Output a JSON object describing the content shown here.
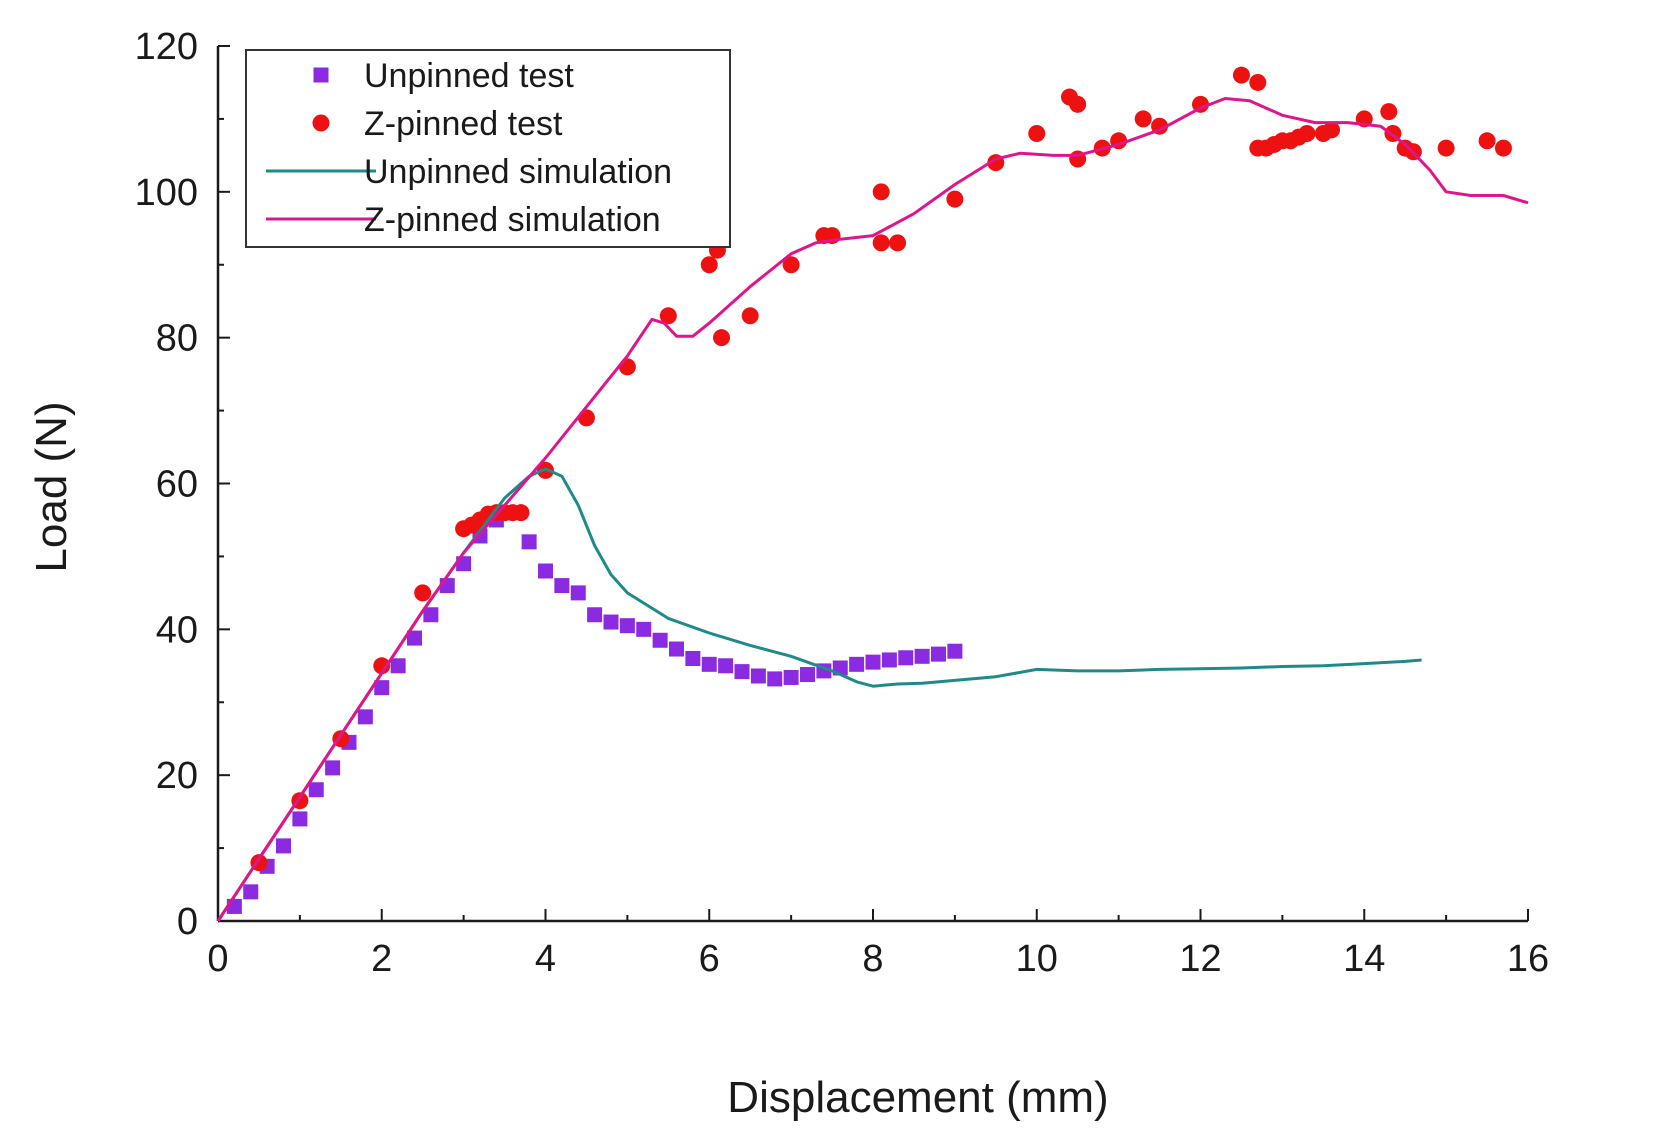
{
  "chart_data": {
    "type": "scatter",
    "xlabel": "Displacement (mm)",
    "ylabel": "Load (N)",
    "xlim": [
      0,
      16
    ],
    "ylim": [
      0,
      120
    ],
    "xticks": [
      "0",
      "2",
      "4",
      "6",
      "8",
      "10",
      "12",
      "14",
      "16"
    ],
    "yticks": [
      "0",
      "20",
      "40",
      "60",
      "80",
      "100",
      "120"
    ],
    "grid": false,
    "legend_position": "top-left",
    "series": [
      {
        "name": "Unpinned test",
        "kind": "scatter",
        "marker": "square",
        "color": "#8a2be2",
        "points": [
          [
            0.2,
            2
          ],
          [
            0.4,
            4
          ],
          [
            0.6,
            7.5
          ],
          [
            0.8,
            10.3
          ],
          [
            1.0,
            14
          ],
          [
            1.2,
            18
          ],
          [
            1.4,
            21
          ],
          [
            1.6,
            24.5
          ],
          [
            1.8,
            28
          ],
          [
            2.0,
            32
          ],
          [
            2.2,
            35
          ],
          [
            2.4,
            38.8
          ],
          [
            2.6,
            42
          ],
          [
            2.8,
            46
          ],
          [
            3.0,
            49
          ],
          [
            3.2,
            52.8
          ],
          [
            3.4,
            55
          ],
          [
            3.8,
            52
          ],
          [
            4.0,
            48
          ],
          [
            4.2,
            46
          ],
          [
            4.4,
            45
          ],
          [
            4.6,
            42
          ],
          [
            4.8,
            41
          ],
          [
            5.0,
            40.5
          ],
          [
            5.2,
            40
          ],
          [
            5.4,
            38.5
          ],
          [
            5.6,
            37.3
          ],
          [
            5.8,
            36
          ],
          [
            6.0,
            35.2
          ],
          [
            6.2,
            35
          ],
          [
            6.4,
            34.2
          ],
          [
            6.6,
            33.6
          ],
          [
            6.8,
            33.2
          ],
          [
            7.0,
            33.4
          ],
          [
            7.2,
            33.8
          ],
          [
            7.4,
            34.3
          ],
          [
            7.6,
            34.7
          ],
          [
            7.8,
            35.2
          ],
          [
            8.0,
            35.5
          ],
          [
            8.2,
            35.8
          ],
          [
            8.4,
            36.1
          ],
          [
            8.6,
            36.3
          ],
          [
            8.8,
            36.6
          ],
          [
            9.0,
            37
          ]
        ]
      },
      {
        "name": "Z-pinned test",
        "kind": "scatter",
        "marker": "circle",
        "color": "#ee1111",
        "points": [
          [
            0.5,
            8
          ],
          [
            1.0,
            16.5
          ],
          [
            1.5,
            25
          ],
          [
            2.0,
            35
          ],
          [
            2.5,
            45
          ],
          [
            3.0,
            53.8
          ],
          [
            3.1,
            54.3
          ],
          [
            3.2,
            55
          ],
          [
            3.3,
            55.8
          ],
          [
            3.4,
            56
          ],
          [
            3.5,
            56
          ],
          [
            3.6,
            56
          ],
          [
            3.7,
            56
          ],
          [
            4.0,
            61.8
          ],
          [
            4.5,
            69
          ],
          [
            5.0,
            76
          ],
          [
            5.5,
            83
          ],
          [
            6.0,
            90
          ],
          [
            6.1,
            92
          ],
          [
            6.15,
            80
          ],
          [
            6.5,
            83
          ],
          [
            7.0,
            90
          ],
          [
            7.4,
            94
          ],
          [
            7.5,
            94
          ],
          [
            8.1,
            100
          ],
          [
            8.1,
            93
          ],
          [
            8.3,
            93
          ],
          [
            9.0,
            99
          ],
          [
            9.5,
            104
          ],
          [
            10.0,
            108
          ],
          [
            10.4,
            113
          ],
          [
            10.5,
            112
          ],
          [
            10.5,
            104.5
          ],
          [
            10.8,
            106
          ],
          [
            11.0,
            107
          ],
          [
            11.3,
            110
          ],
          [
            11.5,
            109
          ],
          [
            12.0,
            112
          ],
          [
            12.5,
            116
          ],
          [
            12.7,
            115
          ],
          [
            12.7,
            106
          ],
          [
            12.8,
            106
          ],
          [
            12.9,
            106.5
          ],
          [
            13.0,
            107
          ],
          [
            13.1,
            107
          ],
          [
            13.2,
            107.5
          ],
          [
            13.3,
            108
          ],
          [
            13.5,
            108
          ],
          [
            13.6,
            108.5
          ],
          [
            14.0,
            110
          ],
          [
            14.3,
            111
          ],
          [
            14.35,
            108
          ],
          [
            14.5,
            106
          ],
          [
            14.6,
            105.5
          ],
          [
            15.0,
            106
          ],
          [
            15.5,
            107
          ],
          [
            15.7,
            106
          ]
        ]
      },
      {
        "name": "Unpinned simulation",
        "kind": "line",
        "color": "#1f8a8a",
        "points": [
          [
            0,
            0
          ],
          [
            0.5,
            8.5
          ],
          [
            1,
            17
          ],
          [
            1.5,
            25.5
          ],
          [
            2,
            34
          ],
          [
            2.5,
            42.5
          ],
          [
            3,
            50.5
          ],
          [
            3.5,
            58
          ],
          [
            3.8,
            61
          ],
          [
            4.0,
            62
          ],
          [
            4.2,
            61
          ],
          [
            4.4,
            57
          ],
          [
            4.6,
            51.5
          ],
          [
            4.8,
            47.5
          ],
          [
            5.0,
            45
          ],
          [
            5.5,
            41.5
          ],
          [
            6.0,
            39.5
          ],
          [
            6.5,
            37.8
          ],
          [
            7.0,
            36.3
          ],
          [
            7.5,
            34.3
          ],
          [
            7.8,
            32.8
          ],
          [
            8.0,
            32.2
          ],
          [
            8.3,
            32.5
          ],
          [
            8.6,
            32.6
          ],
          [
            9.0,
            33
          ],
          [
            9.5,
            33.5
          ],
          [
            10.0,
            34.5
          ],
          [
            10.5,
            34.3
          ],
          [
            11.0,
            34.3
          ],
          [
            11.5,
            34.5
          ],
          [
            12.0,
            34.6
          ],
          [
            12.5,
            34.7
          ],
          [
            13.0,
            34.9
          ],
          [
            13.5,
            35
          ],
          [
            14.0,
            35.3
          ],
          [
            14.5,
            35.6
          ],
          [
            14.7,
            35.8
          ]
        ]
      },
      {
        "name": "Z-pinned simulation",
        "kind": "line",
        "color": "#e0148c",
        "points": [
          [
            0,
            0
          ],
          [
            0.5,
            8.5
          ],
          [
            1,
            17
          ],
          [
            1.5,
            25.5
          ],
          [
            2,
            34
          ],
          [
            2.5,
            42.5
          ],
          [
            3,
            50.5
          ],
          [
            3.5,
            57
          ],
          [
            4.0,
            63.5
          ],
          [
            4.5,
            70.5
          ],
          [
            5.0,
            77.5
          ],
          [
            5.3,
            82.5
          ],
          [
            5.45,
            82
          ],
          [
            5.6,
            80.2
          ],
          [
            5.8,
            80.2
          ],
          [
            6.0,
            82
          ],
          [
            6.5,
            87
          ],
          [
            7.0,
            91.5
          ],
          [
            7.3,
            93
          ],
          [
            7.6,
            93.5
          ],
          [
            8.0,
            94
          ],
          [
            8.5,
            97
          ],
          [
            9.0,
            101
          ],
          [
            9.5,
            104.5
          ],
          [
            9.8,
            105.3
          ],
          [
            10.2,
            105
          ],
          [
            10.5,
            105
          ],
          [
            11.0,
            106.5
          ],
          [
            11.5,
            108.5
          ],
          [
            12.0,
            111.5
          ],
          [
            12.3,
            112.8
          ],
          [
            12.6,
            112.5
          ],
          [
            13.0,
            110.5
          ],
          [
            13.4,
            109.5
          ],
          [
            13.8,
            109.5
          ],
          [
            14.2,
            109
          ],
          [
            14.5,
            106.5
          ],
          [
            14.8,
            103
          ],
          [
            15.0,
            100
          ],
          [
            15.3,
            99.5
          ],
          [
            15.7,
            99.5
          ],
          [
            16.0,
            98.5
          ]
        ]
      }
    ]
  }
}
